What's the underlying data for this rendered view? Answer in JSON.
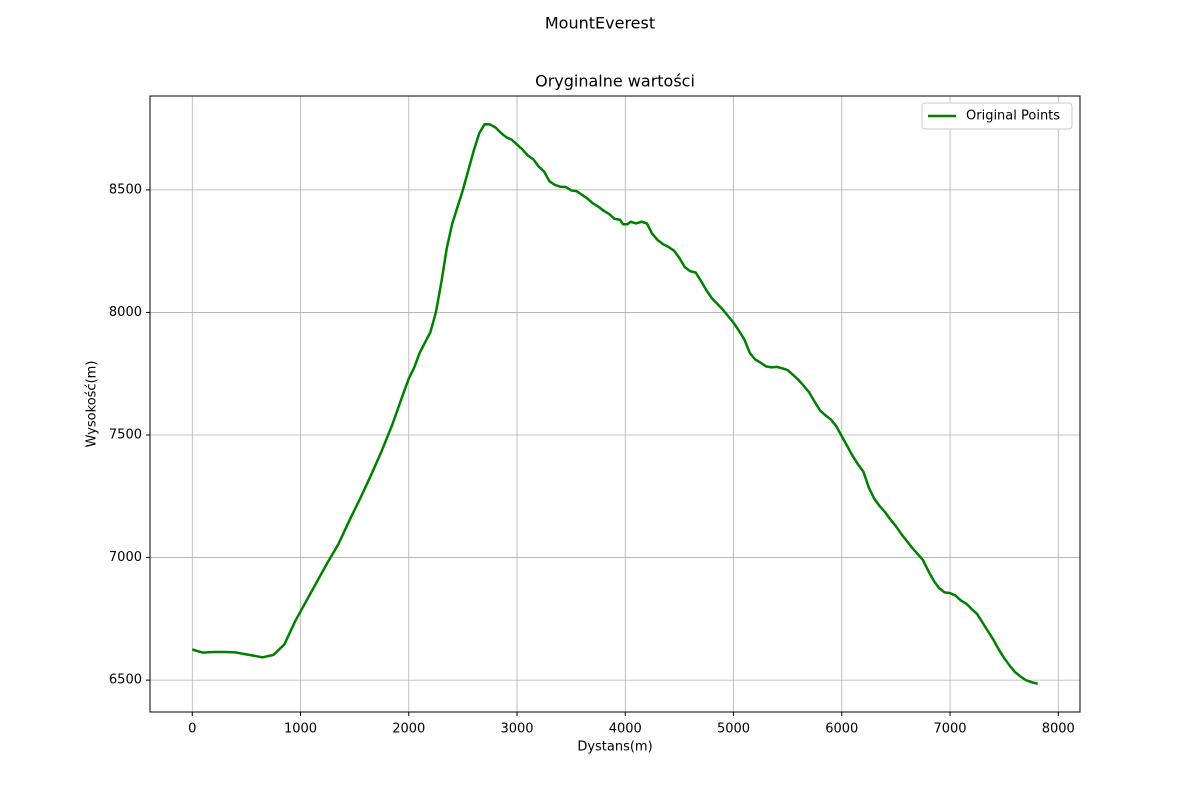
{
  "chart_data": {
    "type": "line",
    "title": "MountEverest",
    "subtitle": "Oryginalne wartości",
    "x_label": "Dystans(m)",
    "y_label": "Wysokość(m)",
    "x": [
      0,
      100,
      200,
      300,
      400,
      500,
      650,
      750,
      850,
      950,
      1050,
      1150,
      1250,
      1350,
      1450,
      1550,
      1650,
      1750,
      1850,
      1950,
      2000,
      2050,
      2100,
      2200,
      2250,
      2300,
      2350,
      2400,
      2450,
      2500,
      2550,
      2600,
      2650,
      2700,
      2750,
      2800,
      2850,
      2900,
      2950,
      3000,
      3050,
      3100,
      3150,
      3200,
      3250,
      3300,
      3350,
      3400,
      3450,
      3500,
      3550,
      3600,
      3650,
      3700,
      3750,
      3800,
      3850,
      3900,
      3950,
      3980,
      4020,
      4050,
      4100,
      4150,
      4200,
      4250,
      4300,
      4350,
      4400,
      4450,
      4500,
      4550,
      4600,
      4650,
      4700,
      4750,
      4800,
      4850,
      4900,
      4950,
      5000,
      5050,
      5100,
      5150,
      5200,
      5250,
      5300,
      5350,
      5400,
      5450,
      5500,
      5550,
      5600,
      5650,
      5700,
      5750,
      5800,
      5850,
      5900,
      5950,
      6000,
      6050,
      6100,
      6150,
      6200,
      6250,
      6300,
      6350,
      6400,
      6450,
      6500,
      6550,
      6600,
      6650,
      6700,
      6750,
      6800,
      6850,
      6900,
      6950,
      7000,
      7050,
      7100,
      7150,
      7200,
      7250,
      7300,
      7350,
      7400,
      7450,
      7500,
      7550,
      7600,
      7650,
      7700,
      7750,
      7810
    ],
    "series": [
      {
        "name": "Original Points",
        "color": "#008000",
        "values": [
          6625,
          6612,
          6615,
          6615,
          6613,
          6605,
          6593,
          6603,
          6645,
          6740,
          6820,
          6900,
          6980,
          7055,
          7150,
          7240,
          7335,
          7435,
          7545,
          7670,
          7730,
          7775,
          7835,
          7920,
          8000,
          8120,
          8260,
          8360,
          8430,
          8500,
          8580,
          8660,
          8730,
          8768,
          8767,
          8755,
          8733,
          8715,
          8705,
          8685,
          8665,
          8640,
          8625,
          8595,
          8575,
          8535,
          8520,
          8513,
          8512,
          8498,
          8495,
          8480,
          8465,
          8445,
          8432,
          8415,
          8402,
          8382,
          8378,
          8360,
          8360,
          8370,
          8363,
          8370,
          8363,
          8320,
          8295,
          8278,
          8267,
          8252,
          8222,
          8185,
          8168,
          8163,
          8128,
          8090,
          8058,
          8035,
          8012,
          7985,
          7958,
          7925,
          7890,
          7835,
          7808,
          7795,
          7780,
          7776,
          7778,
          7772,
          7765,
          7745,
          7725,
          7700,
          7673,
          7635,
          7600,
          7580,
          7563,
          7535,
          7495,
          7455,
          7415,
          7380,
          7350,
          7285,
          7240,
          7210,
          7185,
          7155,
          7128,
          7096,
          7068,
          7040,
          7015,
          6990,
          6945,
          6905,
          6875,
          6858,
          6855,
          6845,
          6825,
          6812,
          6790,
          6770,
          6735,
          6700,
          6665,
          6625,
          6590,
          6560,
          6533,
          6515,
          6500,
          6492,
          6485
        ]
      }
    ],
    "xlim": [
      -390.5,
      8200.5
    ],
    "ylim": [
      6370,
      8883
    ],
    "xticks": [
      0,
      1000,
      2000,
      3000,
      4000,
      5000,
      6000,
      7000,
      8000
    ],
    "yticks": [
      6500,
      7000,
      7500,
      8000,
      8500
    ],
    "grid": true,
    "legend": "upper right"
  }
}
